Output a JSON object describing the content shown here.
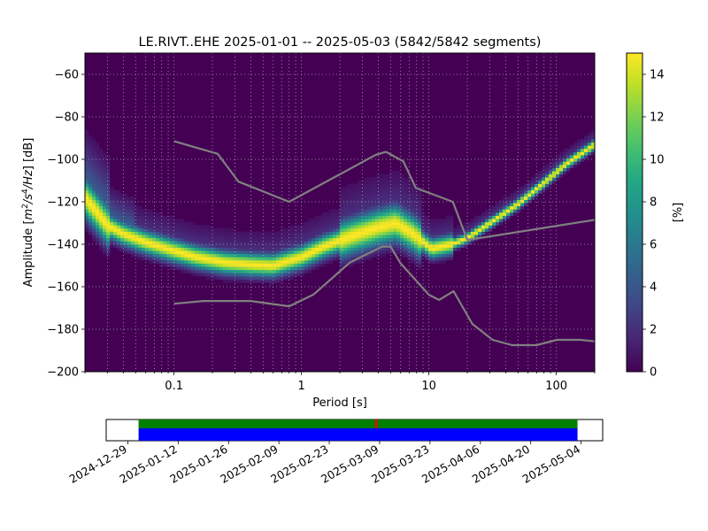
{
  "chart_data": [
    {
      "type": "heatmap",
      "title": "LE.RIVT..EHE   2025-01-01 -- 2025-05-03  (5842/5842 segments)",
      "xlabel": "Period [s]",
      "ylabel_parts": [
        "Amplitude [",
        "m",
        "2",
        "/s",
        "4",
        "/Hz",
        "] [dB]"
      ],
      "xscale": "log",
      "xlim": [
        0.02,
        200
      ],
      "ylim": [
        -200,
        -50
      ],
      "xticks": [
        {
          "v": 0.1,
          "label": "0.1"
        },
        {
          "v": 1,
          "label": "1"
        },
        {
          "v": 10,
          "label": "10"
        },
        {
          "v": 100,
          "label": "100"
        }
      ],
      "yticks": [
        {
          "v": -60,
          "label": "−60"
        },
        {
          "v": -80,
          "label": "−80"
        },
        {
          "v": -100,
          "label": "−100"
        },
        {
          "v": -120,
          "label": "−120"
        },
        {
          "v": -140,
          "label": "−140"
        },
        {
          "v": -160,
          "label": "−160"
        },
        {
          "v": -180,
          "label": "−180"
        },
        {
          "v": -200,
          "label": "−200"
        }
      ],
      "grid": true,
      "colormap": "viridis",
      "colorbar": {
        "label": "[%]",
        "range": [
          0,
          15
        ],
        "ticks": [
          {
            "v": 0,
            "label": "0"
          },
          {
            "v": 2,
            "label": "2"
          },
          {
            "v": 4,
            "label": "4"
          },
          {
            "v": 6,
            "label": "6"
          },
          {
            "v": 8,
            "label": "8"
          },
          {
            "v": 10,
            "label": "10"
          },
          {
            "v": 12,
            "label": "12"
          },
          {
            "v": 14,
            "label": "14"
          }
        ]
      },
      "mode_curve": {
        "period": [
          0.02,
          0.025,
          0.03,
          0.04,
          0.06,
          0.1,
          0.15,
          0.25,
          0.4,
          0.6,
          1.0,
          1.5,
          2.5,
          4.0,
          5.5,
          7.5,
          10.5,
          15,
          20,
          30,
          50,
          80,
          120,
          200
        ],
        "db": [
          -118,
          -125,
          -131,
          -135,
          -139,
          -143,
          -146,
          -148.5,
          -149.5,
          -150,
          -146,
          -141,
          -136,
          -132,
          -130,
          -135,
          -142,
          -140,
          -137,
          -130,
          -121,
          -111,
          -102,
          -93
        ]
      },
      "noise_models": [
        {
          "name": "high",
          "period": [
            0.1,
            0.22,
            0.32,
            0.8,
            3.8,
            4.6,
            6.3,
            7.9,
            15.4,
            20,
            200
          ],
          "db": [
            -91.5,
            -97.4,
            -110.5,
            -120,
            -98,
            -96.5,
            -101,
            -113.5,
            -120,
            -138,
            -128.5
          ]
        },
        {
          "name": "low",
          "period": [
            0.1,
            0.17,
            0.4,
            0.8,
            1.24,
            2.4,
            4.3,
            5,
            6,
            10,
            12,
            15.6,
            21.9,
            31.6,
            45,
            70,
            101,
            154,
            200
          ],
          "db": [
            -168,
            -166.7,
            -166.7,
            -169.2,
            -163.7,
            -148.6,
            -141.1,
            -141.1,
            -149,
            -163.8,
            -166.2,
            -162.1,
            -177.5,
            -185,
            -187.5,
            -187.5,
            -185,
            -185,
            -185.7
          ]
        }
      ],
      "colors": {
        "mode": "#fde725",
        "models": "#808080",
        "background": "#440154"
      }
    },
    {
      "type": "timeline",
      "date_ticks": [
        "2024-12-29",
        "2025-01-12",
        "2025-01-26",
        "2025-02-09",
        "2025-02-23",
        "2025-03-09",
        "2025-03-23",
        "2025-04-06",
        "2025-04-20",
        "2025-05-04"
      ],
      "data_start": "2025-01-01",
      "data_end": "2025-05-03",
      "gap_marker_date": "2025-03-08",
      "colors": {
        "coverage": "#008000",
        "data": "#0000ff",
        "gap": "#ff0000"
      }
    }
  ]
}
